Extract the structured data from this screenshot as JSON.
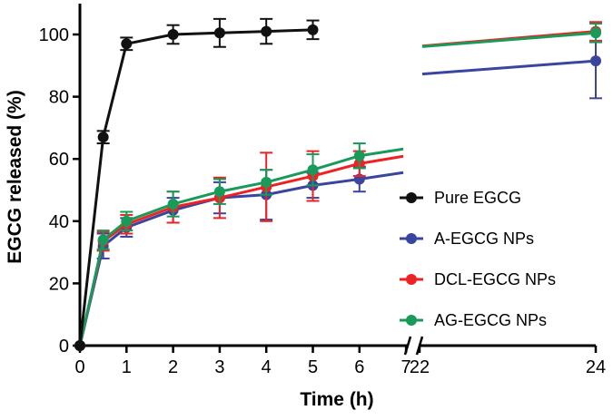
{
  "chart_data": {
    "type": "line",
    "title": "",
    "xlabel": "Time (h)",
    "ylabel": "EGCG released (%)",
    "ylim": [
      0,
      110
    ],
    "x_ticks": [
      "0",
      "1",
      "2",
      "3",
      "4",
      "5",
      "6",
      "7",
      "22",
      "24"
    ],
    "y_ticks": [
      "0",
      "20",
      "40",
      "60",
      "80",
      "100"
    ],
    "x_axis_break": [
      7,
      22
    ],
    "legend_position": "right",
    "series": [
      {
        "name": "Pure EGCG",
        "color": "#111111",
        "x": [
          0,
          0.5,
          1,
          2,
          3,
          4,
          5
        ],
        "values": [
          0,
          67,
          97,
          100,
          100.5,
          101,
          101.5
        ],
        "errors": [
          0,
          2,
          2,
          3,
          4.5,
          4,
          3
        ]
      },
      {
        "name": "A-EGCG NPs",
        "color": "#3a45a0",
        "x": [
          0,
          0.5,
          1,
          2,
          3,
          4,
          5,
          6,
          24
        ],
        "values": [
          0,
          32,
          38,
          43.5,
          47.5,
          48.5,
          51.5,
          53.5,
          91.5
        ],
        "errors": [
          0,
          4,
          3,
          4,
          5,
          8,
          4,
          4,
          12
        ]
      },
      {
        "name": "DCL-EGCG NPs",
        "color": "#ee2222",
        "x": [
          0,
          0.5,
          1,
          2,
          3,
          4,
          5,
          6,
          24
        ],
        "values": [
          0,
          33.5,
          39,
          44.5,
          47.5,
          51,
          54.5,
          58.5,
          101
        ],
        "errors": [
          0,
          3,
          3,
          5,
          6.5,
          11,
          8,
          4,
          3
        ]
      },
      {
        "name": "AG-EGCG NPs",
        "color": "#1a9a5a",
        "x": [
          0,
          0.5,
          1,
          2,
          3,
          4,
          5,
          6,
          24
        ],
        "values": [
          0,
          34,
          40,
          45.5,
          49.5,
          52.5,
          56.5,
          61,
          100.5
        ],
        "errors": [
          0,
          3,
          3,
          4,
          4,
          4,
          5,
          4,
          3
        ]
      }
    ]
  }
}
